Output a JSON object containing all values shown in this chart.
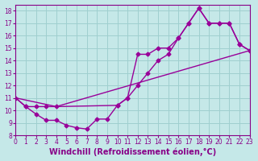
{
  "xlabel": "Windchill (Refroidissement éolien,°C)",
  "bg_color": "#c5e8e8",
  "grid_color": "#9fcfcf",
  "line_color": "#990099",
  "xlim": [
    0,
    23
  ],
  "ylim": [
    8,
    18.5
  ],
  "xticks": [
    0,
    1,
    2,
    3,
    4,
    5,
    6,
    7,
    8,
    9,
    10,
    11,
    12,
    13,
    14,
    15,
    16,
    17,
    18,
    19,
    20,
    21,
    22,
    23
  ],
  "yticks": [
    8,
    9,
    10,
    11,
    12,
    13,
    14,
    15,
    16,
    17,
    18
  ],
  "line1_x": [
    0,
    1,
    2,
    3,
    4,
    5,
    6,
    7,
    8,
    9,
    10,
    11,
    12,
    13,
    14,
    15,
    16,
    17,
    18,
    19,
    20,
    21,
    22,
    23
  ],
  "line1_y": [
    11.0,
    10.3,
    9.7,
    9.2,
    9.2,
    8.8,
    8.6,
    8.5,
    9.3,
    9.3,
    10.4,
    11.0,
    14.5,
    14.5,
    15.0,
    15.0,
    15.8,
    17.0,
    18.2,
    17.0,
    17.0,
    17.0,
    15.3,
    14.8
  ],
  "line2_x": [
    0,
    1,
    2,
    3,
    4,
    10,
    11,
    12,
    13,
    14,
    15,
    16,
    17,
    18,
    19,
    20,
    21,
    22,
    23
  ],
  "line2_y": [
    11.0,
    10.3,
    10.3,
    10.3,
    10.3,
    10.4,
    11.0,
    12.0,
    13.0,
    14.0,
    14.5,
    15.8,
    17.0,
    18.2,
    17.0,
    17.0,
    17.0,
    15.3,
    14.8
  ],
  "line3_x": [
    0,
    4,
    23
  ],
  "line3_y": [
    11.0,
    10.3,
    14.8
  ],
  "marker": "D",
  "marker_size": 2.5,
  "line_width": 1.0,
  "font_color": "#880088",
  "tick_fontsize": 5.5,
  "label_fontsize": 7
}
